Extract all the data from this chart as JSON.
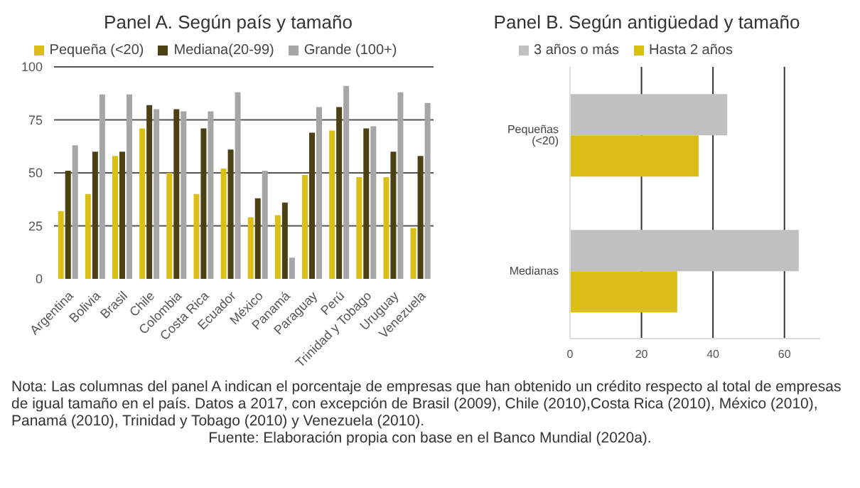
{
  "chart_data": [
    {
      "type": "bar",
      "title": "Panel A. Según país y tamaño",
      "categories": [
        "Argentina",
        "Bolivia",
        "Brasil",
        "Chile",
        "Colombia",
        "Costa Rica",
        "Ecuador",
        "México",
        "Panamá",
        "Paraguay",
        "Perú",
        "Trinidad y Tobago",
        "Uruguay",
        "Venezuela"
      ],
      "series": [
        {
          "name": "Pequeña (<20)",
          "color": "#dcbf16",
          "values": [
            32,
            40,
            58,
            71,
            50,
            40,
            52,
            29,
            30,
            49,
            70,
            48,
            48,
            24
          ]
        },
        {
          "name": "Mediana(20-99)",
          "color": "#4d4012",
          "values": [
            51,
            60,
            60,
            82,
            80,
            71,
            61,
            38,
            36,
            69,
            81,
            71,
            60,
            58
          ]
        },
        {
          "name": "Grande (100+)",
          "color": "#a6a6a6",
          "values": [
            63,
            87,
            87,
            80,
            79,
            79,
            88,
            51,
            10,
            81,
            91,
            72,
            88,
            83
          ]
        }
      ],
      "ylim": [
        0,
        100
      ],
      "yticks": [
        0,
        25,
        50,
        75,
        100
      ],
      "grid": "y",
      "legend": "top",
      "annotations": [
        "Nota: Las columnas del panel A indican el porcentaje de empresas que han obtenido un crédito respecto al total de empresas de igual tamaño en el país. Datos a 2017, con excepción de Brasil (2009), Chile (2010),Costa Rica (2010), México (2010), Panamá (2010), Trinidad y Tobago (2010) y Venezuela (2010).",
        "Fuente: Elaboración propia con base en el Banco Mundial (2020a)."
      ]
    },
    {
      "type": "bar",
      "title": "Panel B. Según antigüedad y tamaño",
      "orientation": "horizontal",
      "categories": [
        "Pequeñas (<20)",
        "Medianas"
      ],
      "series": [
        {
          "name": "3 años o más",
          "color": "#c0c0c0",
          "values": [
            44,
            64
          ]
        },
        {
          "name": "Hasta 2 años",
          "color": "#dcbf16",
          "values": [
            36,
            30
          ]
        }
      ],
      "xlim": [
        0,
        70
      ],
      "xticks": [
        0,
        20,
        40,
        60
      ],
      "grid": "x",
      "legend": "top"
    }
  ]
}
